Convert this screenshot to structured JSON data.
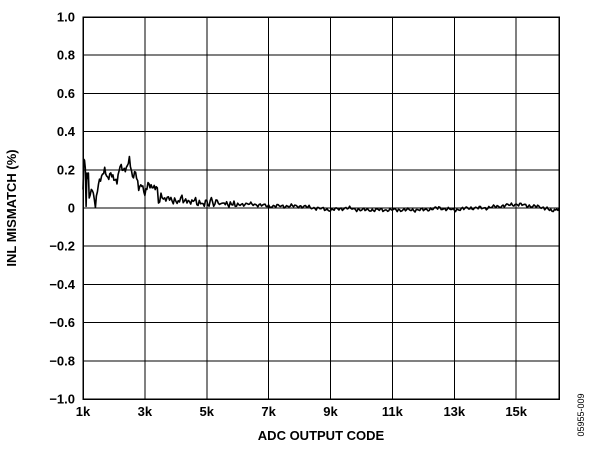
{
  "chart_data": {
    "type": "line",
    "title": "",
    "xlabel": "ADC OUTPUT CODE",
    "ylabel": "INL MISMATCH (%)",
    "xlim": [
      1000,
      16384
    ],
    "ylim": [
      -1.0,
      1.0
    ],
    "grid": true,
    "x_ticks": [
      1000,
      3000,
      5000,
      7000,
      9000,
      11000,
      13000,
      15000
    ],
    "x_tick_labels": [
      "1k",
      "3k",
      "5k",
      "7k",
      "9k",
      "11k",
      "13k",
      "15k"
    ],
    "y_ticks": [
      1.0,
      0.8,
      0.6,
      0.4,
      0.2,
      0,
      -0.2,
      -0.4,
      -0.6,
      -0.8,
      -1.0
    ],
    "y_tick_labels": [
      "1.0",
      "0.8",
      "0.6",
      "0.4",
      "0.2",
      "0",
      "−0.2",
      "−0.4",
      "−0.6",
      "−0.8",
      "−1.0"
    ],
    "series": [
      {
        "x": [
          1000,
          1050,
          1100,
          1150,
          1200,
          1300,
          1400,
          1500,
          1600,
          1700,
          1800,
          1900,
          2000,
          2100,
          2200,
          2300,
          2400,
          2500,
          2600,
          2700,
          2800,
          2900,
          3000,
          3100,
          3200,
          3300,
          3400,
          3600,
          3800,
          4000,
          4200,
          4400,
          4600,
          4800,
          5000,
          5300,
          5600,
          6000,
          6500,
          7000,
          7500,
          8000,
          8500,
          9000,
          9500,
          10000,
          10500,
          11000,
          11500,
          12000,
          12500,
          13000,
          13500,
          14000,
          14500,
          15000,
          15500,
          16000,
          16200,
          16384
        ],
        "y": [
          0.12,
          0.3,
          0.05,
          0.2,
          0.1,
          0.13,
          0.02,
          0.12,
          0.15,
          0.2,
          0.17,
          0.22,
          0.2,
          0.18,
          0.25,
          0.2,
          0.19,
          0.24,
          0.15,
          0.2,
          0.13,
          0.16,
          0.1,
          0.14,
          0.1,
          0.08,
          0.07,
          0.05,
          0.05,
          0.03,
          0.05,
          0.03,
          0.04,
          0.02,
          0.03,
          0.03,
          0.02,
          0.02,
          0.02,
          0.01,
          0.01,
          0.01,
          0.0,
          -0.01,
          0.0,
          -0.01,
          -0.01,
          -0.01,
          -0.01,
          -0.01,
          0.0,
          -0.01,
          0.0,
          0.0,
          0.01,
          0.02,
          0.01,
          0.0,
          -0.02,
          0.0
        ]
      }
    ]
  },
  "figure_id": "05955-009"
}
